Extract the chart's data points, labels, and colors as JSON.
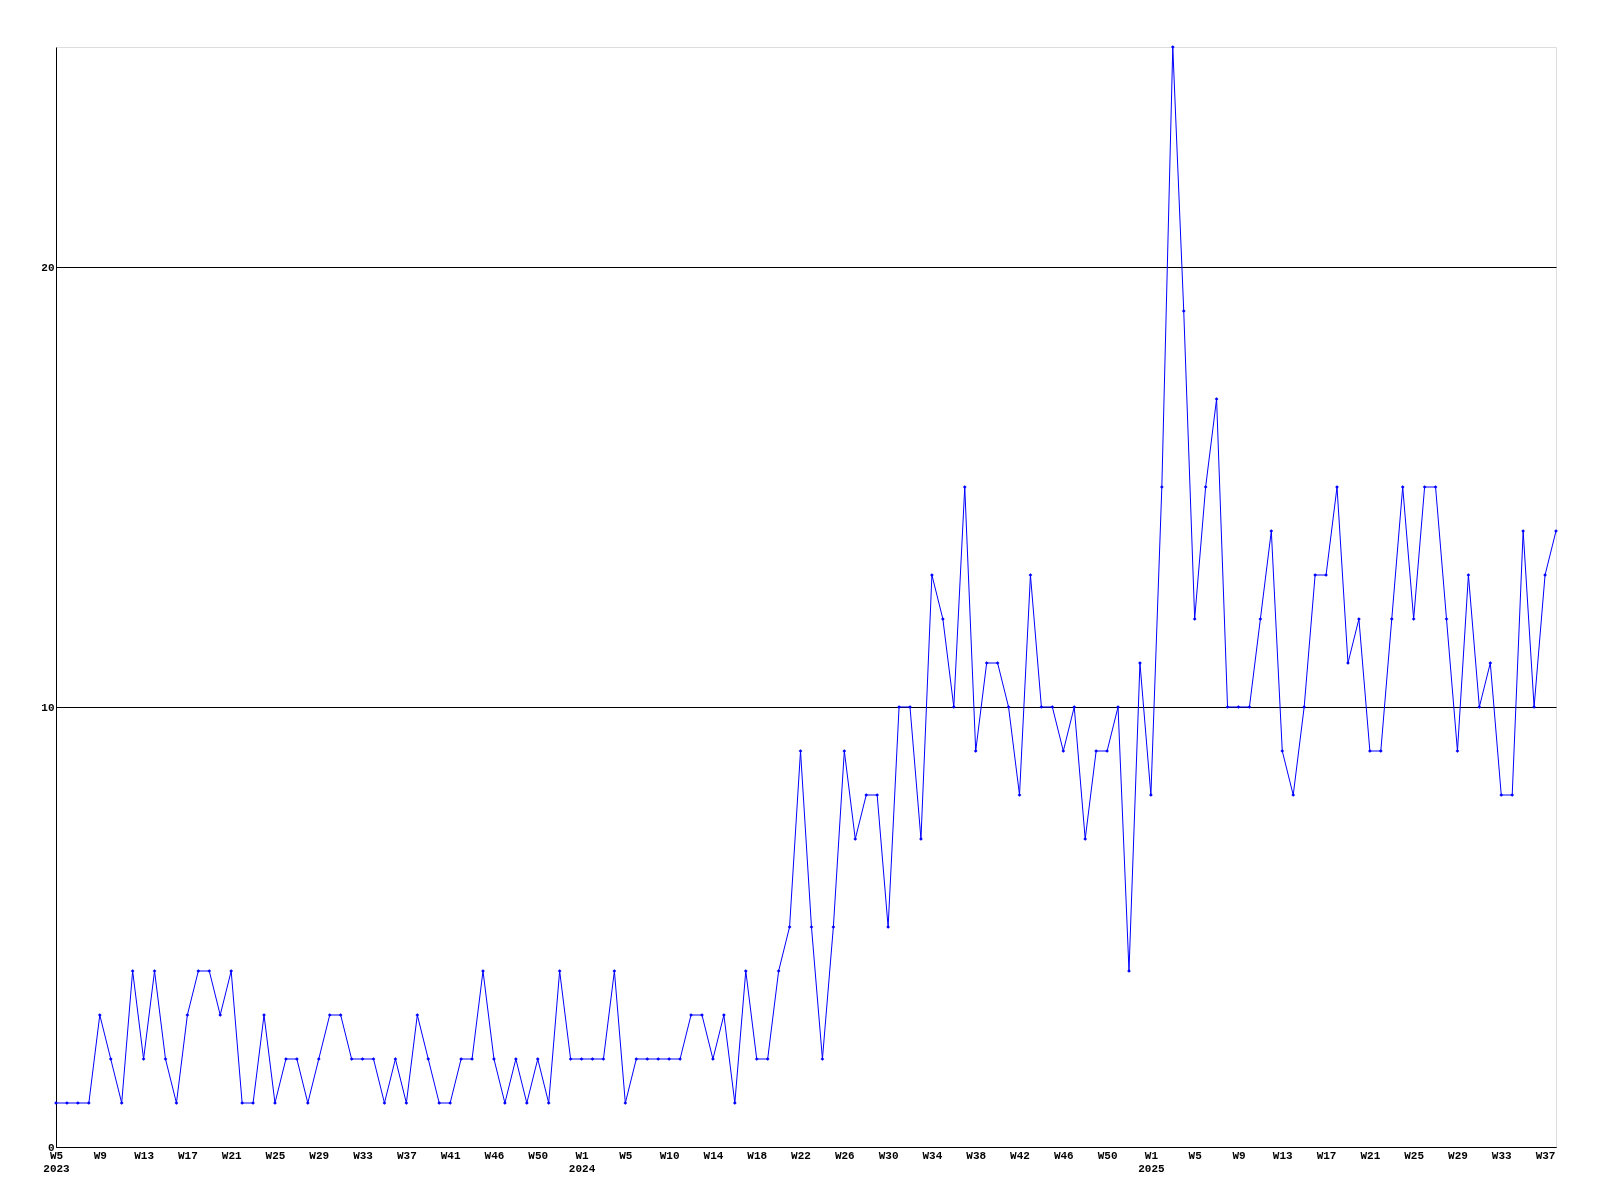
{
  "chart_data": {
    "type": "line",
    "color": "#0000ff",
    "marker": "diamond",
    "line_style": "solid",
    "grid": "y",
    "categories": [
      "W5\n2023",
      null,
      null,
      null,
      "W9",
      null,
      null,
      null,
      "W13",
      null,
      null,
      null,
      "W17",
      null,
      null,
      null,
      "W21",
      null,
      null,
      null,
      "W25",
      null,
      null,
      null,
      "W29",
      null,
      null,
      null,
      "W33",
      null,
      null,
      null,
      "W37",
      null,
      null,
      null,
      "W41",
      null,
      null,
      null,
      "W46",
      null,
      null,
      null,
      "W50",
      null,
      null,
      null,
      "W1\n2024",
      null,
      null,
      null,
      "W5",
      null,
      null,
      null,
      "W10",
      null,
      null,
      null,
      "W14",
      null,
      null,
      null,
      "W18",
      null,
      null,
      null,
      "W22",
      null,
      null,
      null,
      "W26",
      null,
      null,
      null,
      "W30",
      null,
      null,
      null,
      "W34",
      null,
      null,
      null,
      "W38",
      null,
      null,
      null,
      "W42",
      null,
      null,
      null,
      "W46",
      null,
      null,
      null,
      "W50",
      null,
      null,
      null,
      "W1\n2025",
      null,
      null,
      null,
      "W5",
      null,
      null,
      null,
      "W9",
      null,
      null,
      null,
      "W13",
      null,
      null,
      null,
      "W17",
      null,
      null,
      null,
      "W21",
      null,
      null,
      null,
      "W25",
      null,
      null,
      null,
      "W29",
      null,
      null,
      null,
      "W33",
      null,
      null,
      null,
      "W37",
      null
    ],
    "values": [
      1,
      1,
      1,
      1,
      3,
      2,
      1,
      4,
      2,
      4,
      2,
      1,
      3,
      4,
      4,
      3,
      4,
      1,
      1,
      3,
      1,
      2,
      2,
      1,
      2,
      3,
      3,
      2,
      2,
      2,
      1,
      2,
      1,
      3,
      2,
      1,
      1,
      2,
      2,
      4,
      2,
      1,
      2,
      1,
      2,
      1,
      4,
      2,
      2,
      2,
      2,
      4,
      1,
      2,
      2,
      2,
      2,
      2,
      3,
      3,
      2,
      3,
      1,
      4,
      2,
      2,
      4,
      5,
      9,
      5,
      2,
      5,
      9,
      7,
      8,
      8,
      5,
      10,
      10,
      7,
      13,
      12,
      10,
      15,
      9,
      11,
      11,
      10,
      8,
      13,
      10,
      10,
      9,
      10,
      7,
      9,
      9,
      10,
      4,
      11,
      8,
      15,
      25,
      19,
      12,
      15,
      17,
      10,
      10,
      10,
      12,
      14,
      9,
      8,
      10,
      13,
      13,
      15,
      11,
      12,
      9,
      9,
      12,
      15,
      12,
      15,
      15,
      12,
      9,
      13,
      10,
      11,
      8,
      8,
      14,
      10,
      13,
      14
    ],
    "ylim": [
      0,
      25
    ],
    "yticks": [
      0,
      10,
      20
    ]
  }
}
